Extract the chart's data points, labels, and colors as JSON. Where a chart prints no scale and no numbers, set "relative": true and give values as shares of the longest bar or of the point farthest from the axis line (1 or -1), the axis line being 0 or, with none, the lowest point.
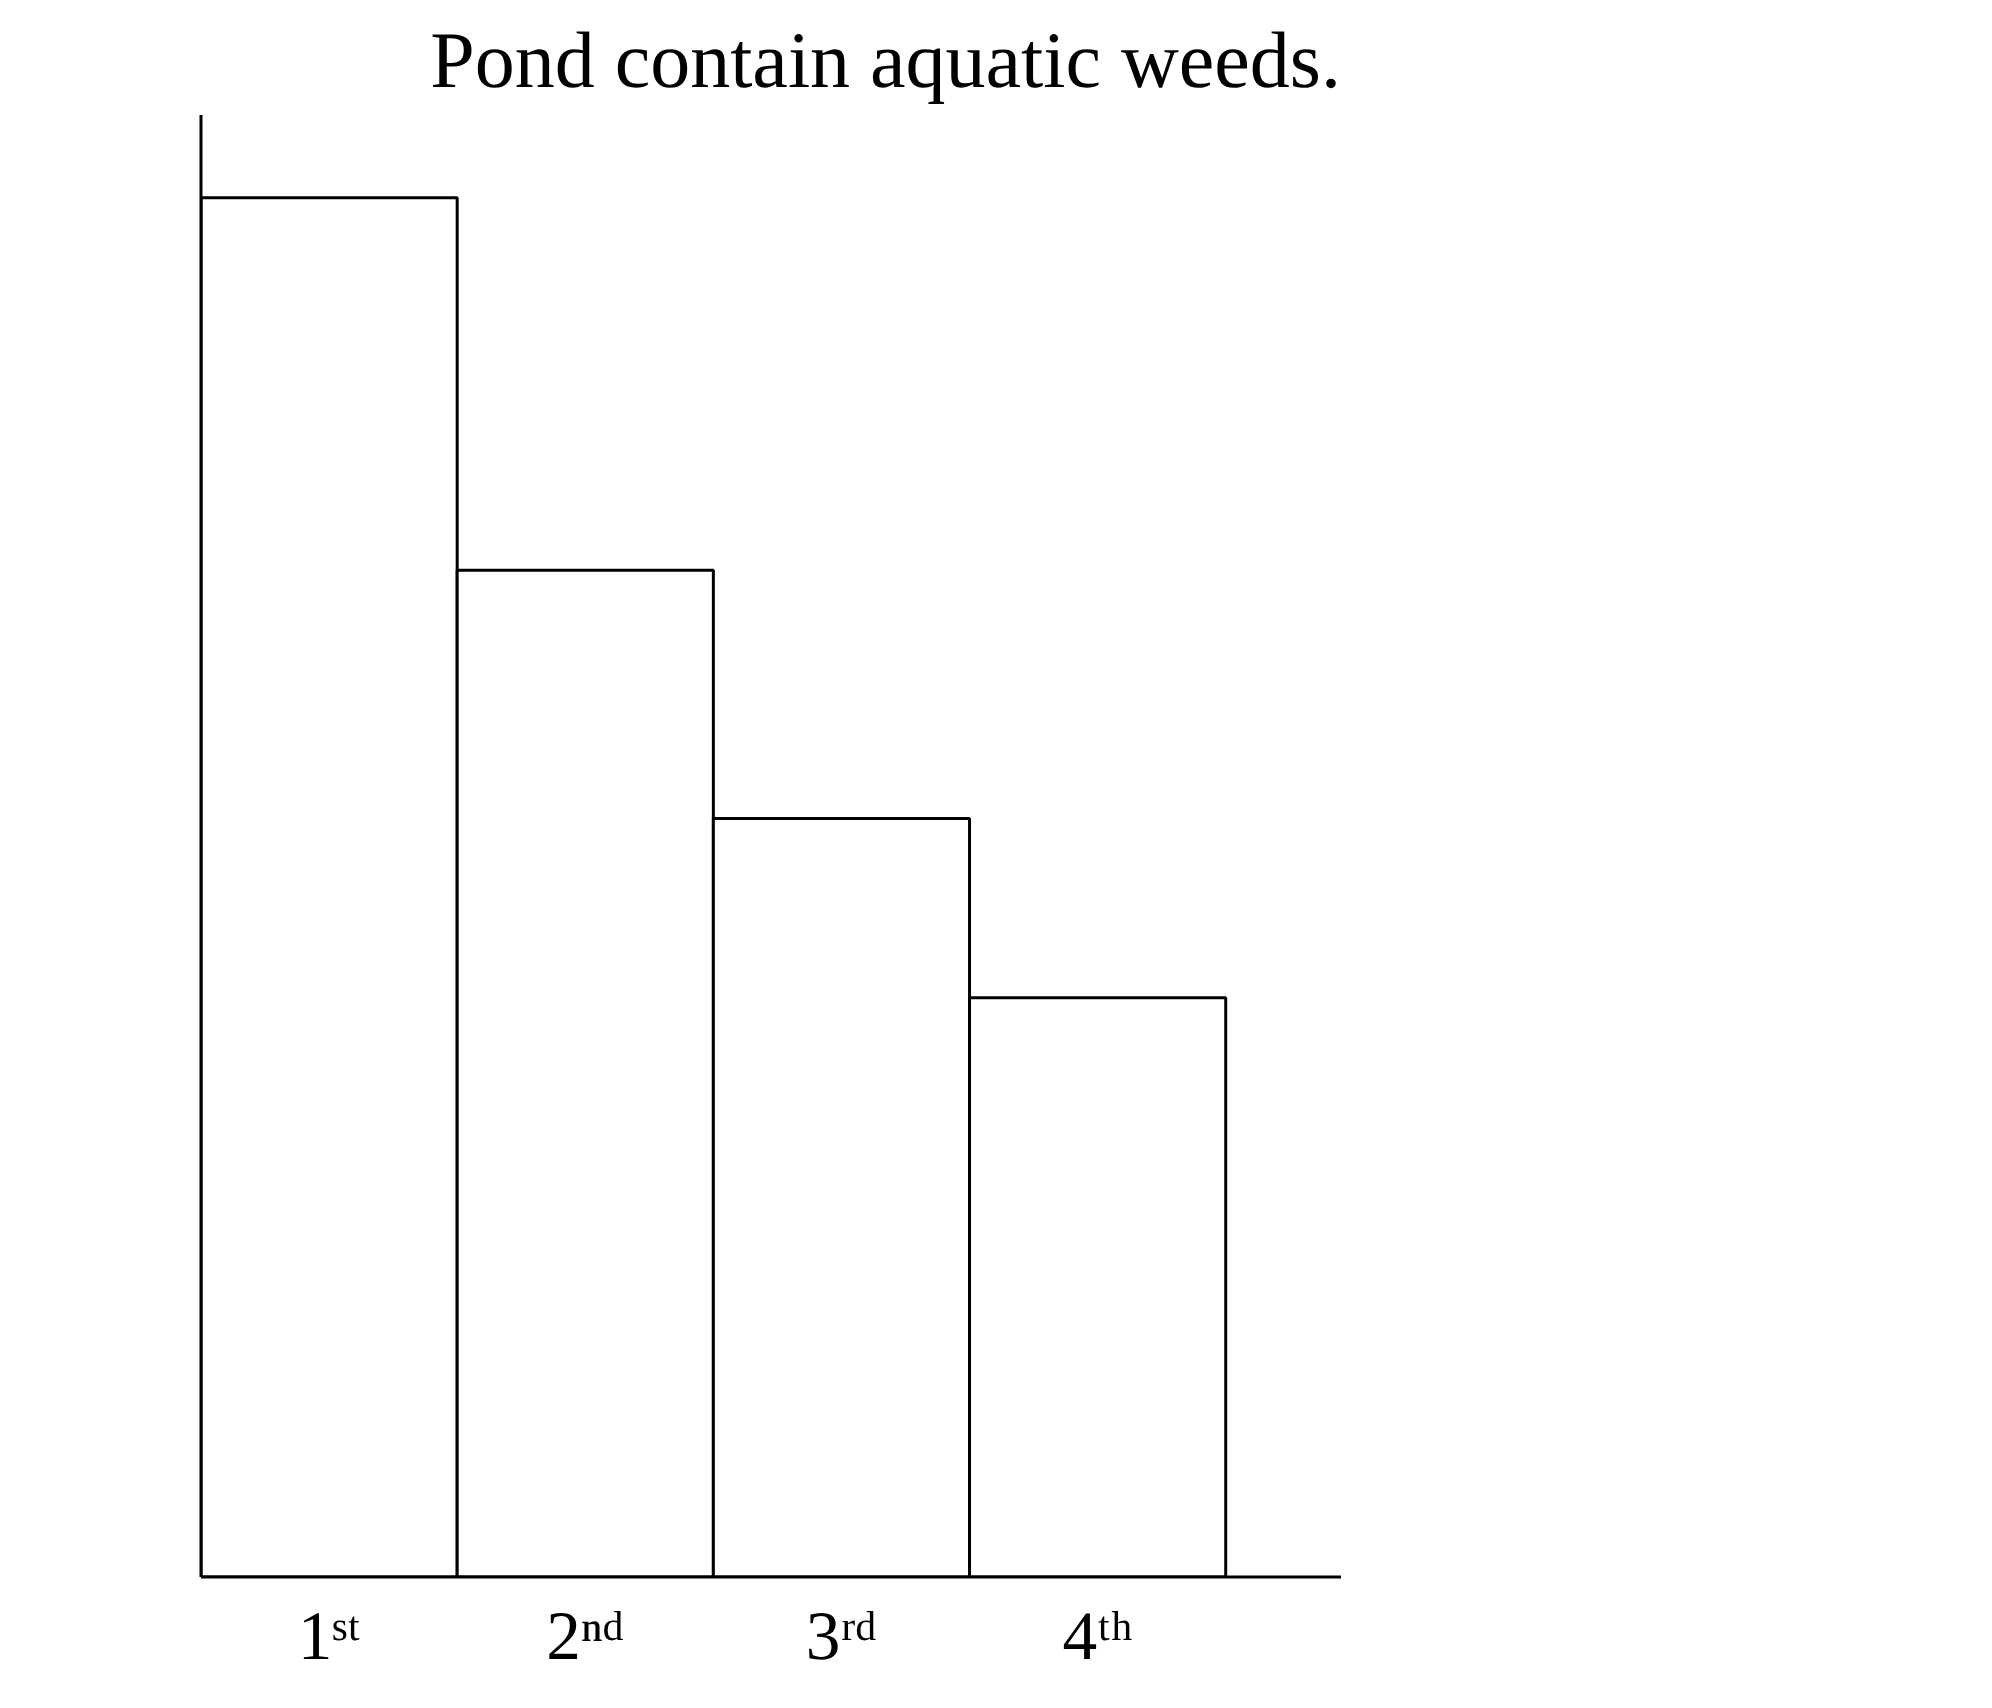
{
  "chart_data": {
    "type": "bar",
    "title": "Pond contain aquatic weeds.",
    "relative": true,
    "categories": [
      "1ˢᵗ",
      "2ⁿᵈ",
      "3ʳᵈ",
      "4ᵗʰ"
    ],
    "values": [
      1,
      0.73,
      0.55,
      0.42
    ],
    "color": "#ffffff",
    "grid": false
  }
}
